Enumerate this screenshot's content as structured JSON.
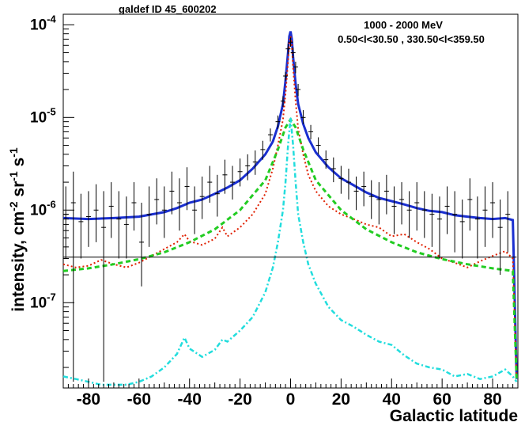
{
  "chart_data": {
    "type": "line",
    "title": "galdef ID 45_600202",
    "annotation_energy": "1000 -  2000 MeV",
    "annotation_region": "0.50<l<30.50 , 330.50<l<359.50",
    "xlabel": "Galactic latitude",
    "ylabel_parts": [
      "intensity, cm",
      "-2",
      " sr",
      "-1",
      " s",
      "-1"
    ],
    "xlim": [
      -90,
      90
    ],
    "ylim": [
      1.2e-08,
      0.00013
    ],
    "y_scale": "log",
    "grid": false,
    "x_ticks": [
      -80,
      -60,
      -40,
      -20,
      0,
      20,
      40,
      60,
      80
    ],
    "y_tick_labels": [
      {
        "value": 1e-07,
        "mantissa": "10",
        "exp": "-7"
      },
      {
        "value": 1e-06,
        "mantissa": "10",
        "exp": "-6"
      },
      {
        "value": 1e-05,
        "mantissa": "10",
        "exp": "-5"
      },
      {
        "value": 0.0001,
        "mantissa": "10",
        "exp": "-4"
      }
    ],
    "series": [
      {
        "key": "total",
        "color": "#1a2fd0",
        "style": "solid",
        "width": 3,
        "x": [
          -90,
          -80,
          -70,
          -60,
          -50,
          -45,
          -40,
          -35,
          -30,
          -25,
          -20,
          -15,
          -10,
          -7,
          -5,
          -3,
          -2,
          -1,
          -0.5,
          0,
          0.5,
          1,
          2,
          3,
          5,
          7,
          10,
          15,
          20,
          25,
          30,
          35,
          40,
          45,
          50,
          55,
          60,
          65,
          70,
          75,
          80,
          85,
          88,
          89.5
        ],
        "y": [
          8.2e-07,
          8e-07,
          8.2e-07,
          8.5e-07,
          9.5e-07,
          1.05e-06,
          1.2e-06,
          1.3e-06,
          1.5e-06,
          1.75e-06,
          2.1e-06,
          2.8e-06,
          4e-06,
          5.5e-06,
          8e-06,
          1.4e-05,
          2.5e-05,
          5e-05,
          7.5e-05,
          8.5e-05,
          7e-05,
          4.5e-05,
          2.3e-05,
          1.4e-05,
          8.5e-06,
          6e-06,
          4.2e-06,
          2.9e-06,
          2.2e-06,
          1.85e-06,
          1.55e-06,
          1.35e-06,
          1.25e-06,
          1.15e-06,
          1.05e-06,
          9.8e-07,
          9.5e-07,
          8.8e-07,
          8.5e-07,
          8.2e-07,
          8e-07,
          8.2e-07,
          7.8e-07,
          1.5e-08
        ]
      },
      {
        "key": "pion-decay",
        "color": "#e02000",
        "style": "dotted",
        "width": 2,
        "x": [
          -90,
          -85,
          -80,
          -75,
          -70,
          -65,
          -60,
          -55,
          -50,
          -45,
          -42,
          -40,
          -35,
          -30,
          -27,
          -25,
          -20,
          -15,
          -10,
          -7,
          -5,
          -3,
          -2,
          -1,
          -0.5,
          0,
          0.5,
          1,
          2,
          3,
          5,
          7,
          10,
          15,
          20,
          25,
          30,
          35,
          40,
          45,
          50,
          55,
          60,
          65,
          70,
          75,
          80,
          85,
          88,
          89.5
        ],
        "y": [
          2.6e-07,
          2.4e-07,
          2.5e-07,
          2.9e-07,
          2.6e-07,
          2.4e-07,
          2.7e-07,
          3.2e-07,
          3.8e-07,
          4.5e-07,
          5.5e-07,
          4.6e-07,
          4.2e-07,
          4.9e-07,
          6.5e-07,
          5.2e-07,
          6.5e-07,
          9e-07,
          1.5e-06,
          2.8e-06,
          5e-06,
          9.5e-06,
          1.8e-05,
          4e-05,
          6.5e-05,
          7.5e-05,
          6e-05,
          3.5e-05,
          1.5e-05,
          7.5e-06,
          4e-06,
          2.4e-06,
          1.6e-06,
          1.1e-06,
          9e-07,
          8e-07,
          7e-07,
          6.5e-07,
          5.2e-07,
          5.5e-07,
          4.5e-07,
          3.8e-07,
          3e-07,
          2.7e-07,
          2.4e-07,
          2.8e-07,
          3.2e-07,
          3.6e-07,
          3e-07,
          1.5e-08
        ]
      },
      {
        "key": "inverse-compton",
        "color": "#22cc22",
        "style": "dashed",
        "width": 3,
        "x": [
          -90,
          -80,
          -70,
          -60,
          -50,
          -40,
          -30,
          -20,
          -10,
          -5,
          -2,
          0,
          2,
          5,
          10,
          20,
          30,
          40,
          50,
          60,
          70,
          80,
          88,
          89.5
        ],
        "y": [
          2.2e-07,
          2.35e-07,
          2.6e-07,
          2.95e-07,
          3.5e-07,
          4.5e-07,
          6.2e-07,
          1e-06,
          2.1e-06,
          4.5e-06,
          7.8e-06,
          9.5e-06,
          7.8e-06,
          4.5e-06,
          2.1e-06,
          1e-06,
          6.2e-07,
          4.5e-07,
          3.5e-07,
          2.95e-07,
          2.6e-07,
          2.35e-07,
          2.2e-07,
          1.5e-08
        ]
      },
      {
        "key": "bremsstrahlung",
        "color": "#22dddd",
        "style": "dashdot",
        "width": 2.5,
        "x": [
          -90,
          -85,
          -80,
          -75,
          -70,
          -65,
          -60,
          -55,
          -50,
          -45,
          -42,
          -40,
          -35,
          -30,
          -27,
          -25,
          -20,
          -15,
          -10,
          -7,
          -5,
          -3,
          -2,
          -1,
          0,
          1,
          2,
          3,
          5,
          7,
          10,
          15,
          20,
          25,
          30,
          35,
          40,
          45,
          50,
          55,
          60,
          65,
          70,
          75,
          80,
          85,
          88,
          89.5
        ],
        "y": [
          1.6e-08,
          1.5e-08,
          1.4e-08,
          1.3e-08,
          1.3e-08,
          1.3e-08,
          1.4e-08,
          1.6e-08,
          2e-08,
          2.8e-08,
          4.2e-08,
          3.2e-08,
          2.6e-08,
          3.1e-08,
          4e-08,
          3.8e-08,
          5e-08,
          7e-08,
          1.3e-07,
          2.4e-07,
          4.5e-07,
          1e-06,
          2e-06,
          5e-06,
          1e-05,
          5e-06,
          2e-06,
          9e-07,
          4.5e-07,
          2.6e-07,
          1.6e-07,
          9e-08,
          6.5e-08,
          5.5e-08,
          4.5e-08,
          3.8e-08,
          3.5e-08,
          2.7e-08,
          2.2e-08,
          2e-08,
          1.9e-08,
          1.6e-08,
          1.7e-08,
          1.5e-08,
          1.6e-08,
          1.9e-08,
          1.6e-08,
          1.4e-08
        ]
      },
      {
        "key": "isotropic",
        "color": "#000000",
        "style": "solid",
        "width": 1,
        "x": [
          -90,
          89.5
        ],
        "y": [
          3.1e-07,
          3.1e-07
        ]
      }
    ],
    "data_points": {
      "color": "#000000",
      "x": [
        -89,
        -86,
        -83,
        -80,
        -77,
        -74,
        -71,
        -68,
        -65,
        -62,
        -59,
        -56,
        -53,
        -50,
        -47,
        -44,
        -41,
        -38,
        -35,
        -32,
        -29,
        -26,
        -23,
        -20,
        -17,
        -14,
        -11,
        -8,
        -5,
        -3,
        -2,
        -1,
        0,
        1,
        2,
        3,
        5,
        8,
        11,
        14,
        17,
        20,
        23,
        26,
        29,
        32,
        35,
        38,
        41,
        44,
        47,
        50,
        53,
        56,
        59,
        62,
        65,
        68,
        71,
        74,
        77,
        80,
        83,
        86
      ],
      "y": [
        9e-07,
        1.2e-06,
        7.5e-07,
        8.5e-07,
        1e-06,
        6.5e-07,
        1.1e-06,
        8e-07,
        7e-07,
        1.2e-06,
        4.5e-07,
        9e-07,
        1.3e-06,
        1e-06,
        1.6e-06,
        1.2e-06,
        1.8e-06,
        1e-06,
        1.4e-06,
        2e-06,
        1.5e-06,
        2.4e-06,
        2e-06,
        2.6e-06,
        3e-06,
        3.3e-06,
        4.5e-06,
        6.5e-06,
        9e-06,
        1.5e-05,
        2.8e-05,
        5.5e-05,
        6.5e-05,
        5e-05,
        3.5e-05,
        2e-05,
        1e-05,
        7e-06,
        5e-06,
        3.5e-06,
        2.8e-06,
        2.2e-06,
        2e-06,
        1.6e-06,
        1.8e-06,
        1.4e-06,
        1.3e-06,
        1.6e-06,
        1.1e-06,
        1.3e-06,
        1e-06,
        1.2e-06,
        1e-06,
        9e-07,
        8e-07,
        1.1e-06,
        9e-07,
        7.5e-07,
        1.3e-06,
        8e-07,
        1e-06,
        1.2e-06,
        6.5e-07,
        9e-07
      ],
      "y_low": [
        3e-07,
        1.4e-08,
        3e-07,
        4e-07,
        4.5e-07,
        1.4e-08,
        5e-07,
        3e-07,
        3e-07,
        6e-07,
        1.5e-07,
        4e-07,
        7e-07,
        5e-07,
        9e-07,
        6e-07,
        1e-06,
        5.5e-07,
        8e-07,
        1.2e-06,
        8.5e-07,
        1.5e-06,
        1.3e-06,
        1.8e-06,
        2.1e-06,
        2.4e-06,
        3.5e-06,
        5.5e-06,
        7.5e-06,
        1.3e-05,
        2.5e-05,
        4.8e-05,
        5.8e-05,
        4.4e-05,
        3e-05,
        1.7e-05,
        8.5e-06,
        5.8e-06,
        4e-06,
        2.8e-06,
        2e-06,
        1.5e-06,
        1.3e-06,
        1e-06,
        1.1e-06,
        8e-07,
        7e-07,
        9e-07,
        5.5e-07,
        7e-07,
        5e-07,
        6e-07,
        5e-07,
        4e-07,
        3e-07,
        5.5e-07,
        3.5e-07,
        3e-07,
        6e-07,
        3e-07,
        4e-07,
        5e-07,
        2e-07,
        3.5e-07
      ],
      "y_high": [
        1.8e-06,
        2.6e-06,
        1.5e-06,
        1.6e-06,
        1.9e-06,
        1.6e-06,
        2e-06,
        1.6e-06,
        1.4e-06,
        2e-06,
        1.2e-06,
        1.8e-06,
        2.2e-06,
        1.8e-06,
        2.6e-06,
        2.2e-06,
        2.9e-06,
        1.8e-06,
        2.3e-06,
        3e-06,
        2.4e-06,
        3.5e-06,
        3e-06,
        3.6e-06,
        4e-06,
        4.4e-06,
        5.6e-06,
        7.6e-06,
        1.05e-05,
        1.7e-05,
        3.1e-05,
        6.2e-05,
        7.3e-05,
        5.7e-05,
        4e-05,
        2.3e-05,
        1.2e-05,
        8.3e-06,
        6.1e-06,
        4.4e-06,
        3.7e-06,
        3e-06,
        2.8e-06,
        2.3e-06,
        2.6e-06,
        2.1e-06,
        2e-06,
        2.4e-06,
        1.8e-06,
        2e-06,
        1.6e-06,
        2e-06,
        1.6e-06,
        1.5e-06,
        1.4e-06,
        1.8e-06,
        1.6e-06,
        1.3e-06,
        2.2e-06,
        1.4e-06,
        1.8e-06,
        2e-06,
        1.3e-06,
        1.6e-06
      ]
    }
  }
}
